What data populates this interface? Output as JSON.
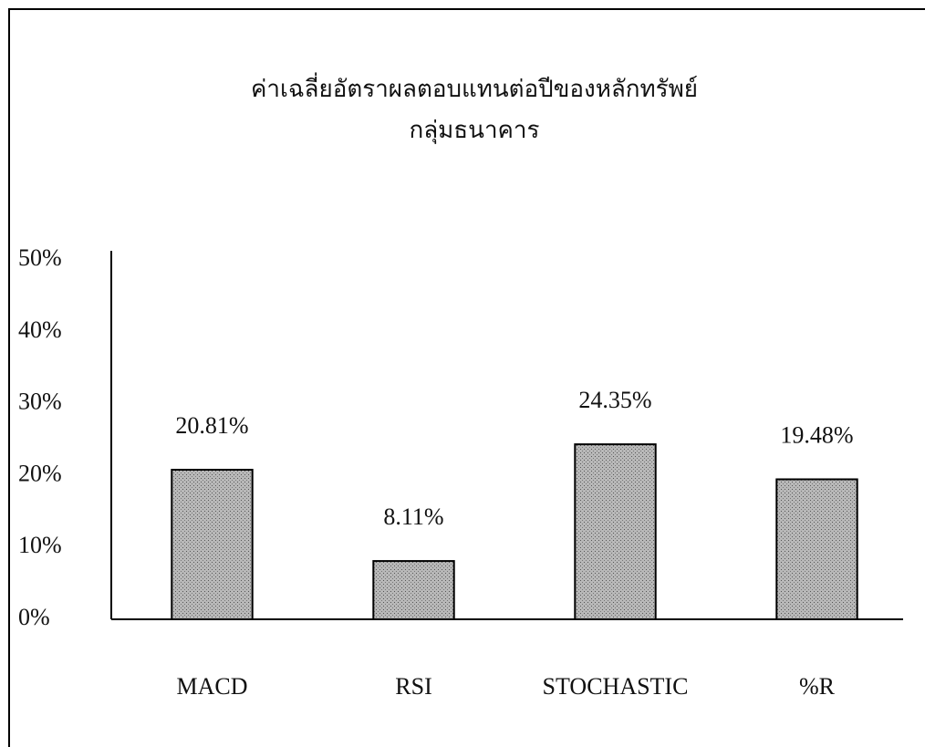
{
  "chart_data": {
    "type": "bar",
    "title": "ค่าเฉลี่ยอัตราผลตอบแทนต่อปีของหลักทรัพย์",
    "subtitle": "กลุ่มธนาคาร",
    "categories": [
      "MACD",
      "RSI",
      "STOCHASTIC",
      "%R"
    ],
    "values": [
      20.81,
      8.11,
      24.35,
      19.48
    ],
    "value_labels": [
      "20.81%",
      "8.11%",
      "24.35%",
      "19.48%"
    ],
    "color": "#a9a9a9",
    "ylim": [
      0,
      50
    ],
    "yticks": [
      {
        "value": 0,
        "label": "0%"
      },
      {
        "value": 10,
        "label": "10%"
      },
      {
        "value": 20,
        "label": "20%"
      },
      {
        "value": 30,
        "label": "30%"
      },
      {
        "value": 40,
        "label": "40%"
      },
      {
        "value": 50,
        "label": "50%"
      }
    ],
    "grid": false
  }
}
